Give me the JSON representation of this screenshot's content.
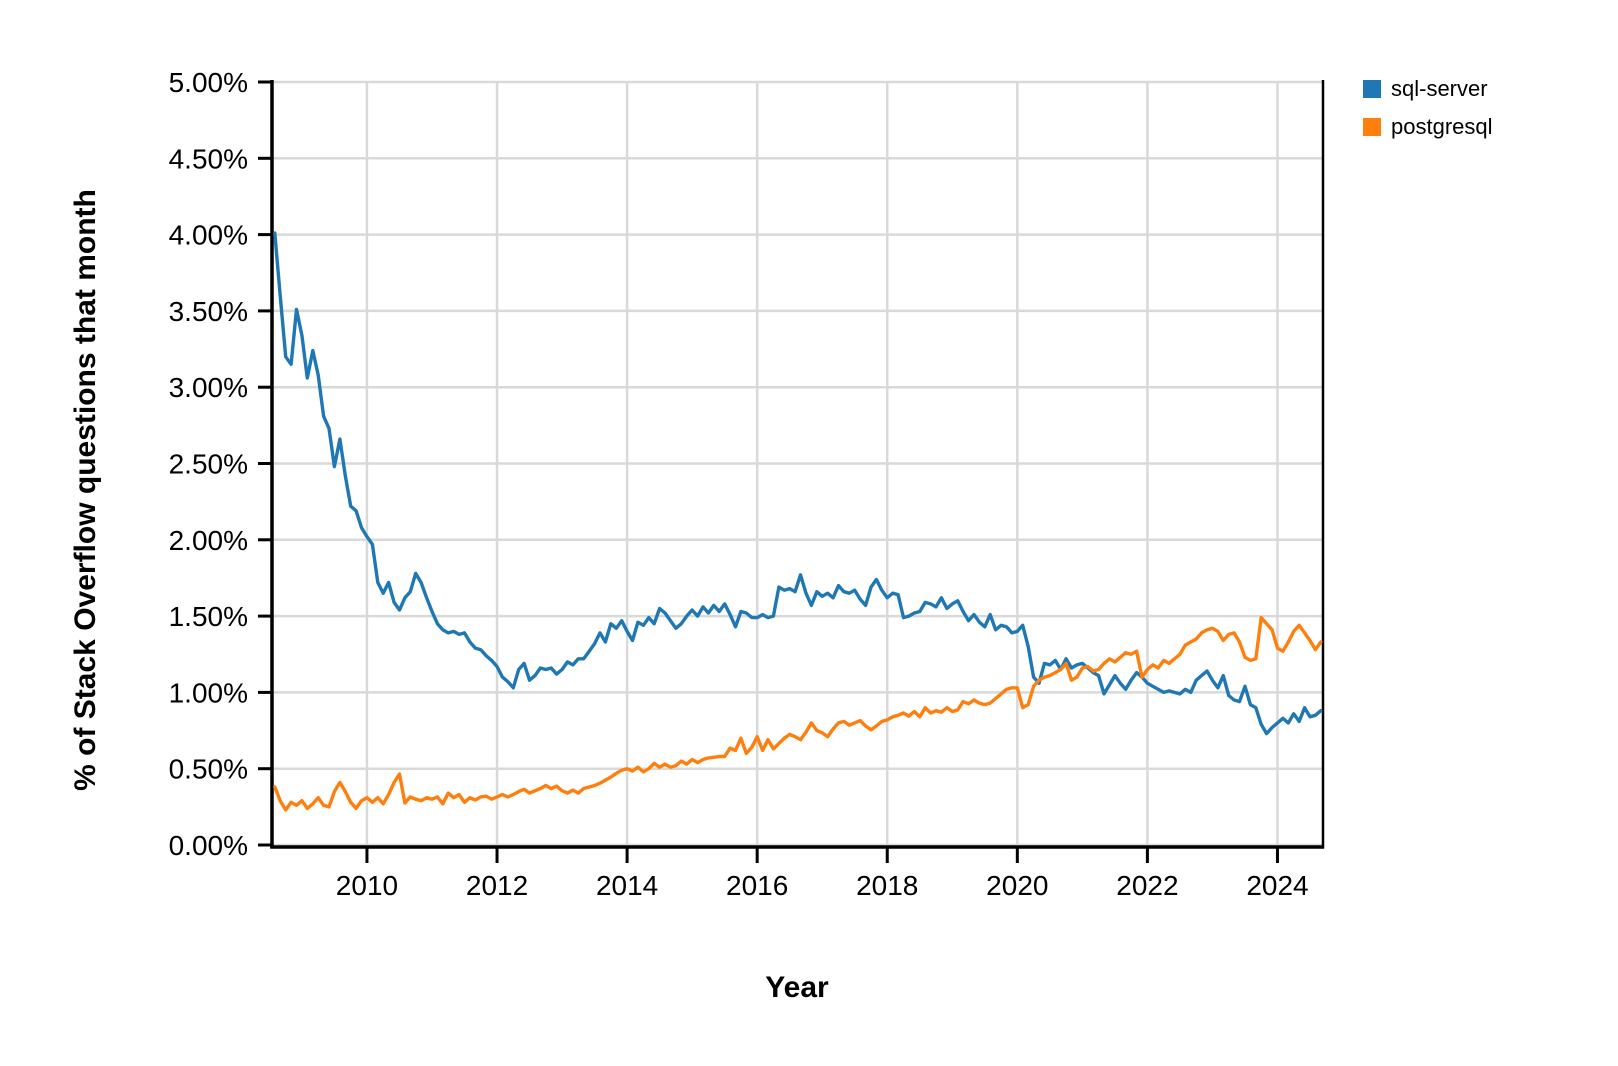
{
  "chart_data": {
    "type": "line",
    "title": "",
    "xlabel": "Year",
    "ylabel": "% of Stack Overflow questions that month",
    "x_start_year": 2008.5833,
    "x_step": "monthly",
    "xlim": [
      2008.54,
      2024.7
    ],
    "ylim": [
      0,
      5
    ],
    "grid": true,
    "legend_position": "top-right",
    "x_ticks": [
      2010,
      2012,
      2014,
      2016,
      2018,
      2020,
      2022,
      2024
    ],
    "x_tick_labels": [
      "2010",
      "2012",
      "2014",
      "2016",
      "2018",
      "2020",
      "2022",
      "2024"
    ],
    "y_ticks": [
      0,
      0.5,
      1.0,
      1.5,
      2.0,
      2.5,
      3.0,
      3.5,
      4.0,
      4.5,
      5.0
    ],
    "y_tick_labels": [
      "0.00%",
      "0.50%",
      "1.00%",
      "1.50%",
      "2.00%",
      "2.50%",
      "3.00%",
      "3.50%",
      "4.00%",
      "4.50%",
      "5.00%"
    ],
    "colors": {
      "grid": "#d9d9d9",
      "axis": "#000000",
      "background": "#ffffff"
    },
    "series": [
      {
        "name": "sql-server",
        "color": "#1f77b4",
        "values": [
          4.01,
          3.6,
          3.2,
          3.15,
          3.51,
          3.34,
          3.06,
          3.24,
          3.08,
          2.81,
          2.73,
          2.48,
          2.66,
          2.42,
          2.22,
          2.19,
          2.08,
          2.02,
          1.97,
          1.72,
          1.65,
          1.72,
          1.59,
          1.54,
          1.62,
          1.66,
          1.78,
          1.72,
          1.62,
          1.53,
          1.45,
          1.41,
          1.39,
          1.4,
          1.38,
          1.39,
          1.33,
          1.29,
          1.28,
          1.24,
          1.21,
          1.17,
          1.1,
          1.07,
          1.03,
          1.15,
          1.19,
          1.08,
          1.11,
          1.16,
          1.15,
          1.16,
          1.12,
          1.15,
          1.2,
          1.18,
          1.22,
          1.22,
          1.27,
          1.32,
          1.39,
          1.33,
          1.45,
          1.42,
          1.47,
          1.4,
          1.34,
          1.46,
          1.44,
          1.49,
          1.45,
          1.55,
          1.52,
          1.47,
          1.42,
          1.45,
          1.5,
          1.54,
          1.5,
          1.56,
          1.52,
          1.57,
          1.53,
          1.58,
          1.51,
          1.43,
          1.53,
          1.52,
          1.49,
          1.49,
          1.51,
          1.49,
          1.5,
          1.69,
          1.67,
          1.68,
          1.66,
          1.77,
          1.65,
          1.57,
          1.66,
          1.63,
          1.65,
          1.62,
          1.7,
          1.66,
          1.65,
          1.67,
          1.61,
          1.57,
          1.69,
          1.74,
          1.67,
          1.62,
          1.65,
          1.64,
          1.49,
          1.5,
          1.52,
          1.53,
          1.59,
          1.58,
          1.56,
          1.62,
          1.55,
          1.58,
          1.6,
          1.53,
          1.47,
          1.51,
          1.46,
          1.43,
          1.51,
          1.41,
          1.44,
          1.43,
          1.39,
          1.4,
          1.44,
          1.3,
          1.1,
          1.06,
          1.19,
          1.18,
          1.21,
          1.15,
          1.22,
          1.16,
          1.18,
          1.19,
          1.16,
          1.13,
          1.11,
          0.99,
          1.05,
          1.11,
          1.06,
          1.02,
          1.08,
          1.13,
          1.1,
          1.06,
          1.04,
          1.02,
          1.0,
          1.01,
          1.0,
          0.99,
          1.02,
          1.0,
          1.08,
          1.11,
          1.14,
          1.08,
          1.03,
          1.11,
          0.98,
          0.95,
          0.94,
          1.04,
          0.92,
          0.9,
          0.79,
          0.73,
          0.77,
          0.8,
          0.83,
          0.8,
          0.86,
          0.81,
          0.9,
          0.84,
          0.85,
          0.88
        ]
      },
      {
        "name": "postgresql",
        "color": "#ff7f0e",
        "values": [
          0.38,
          0.29,
          0.23,
          0.28,
          0.26,
          0.29,
          0.24,
          0.27,
          0.31,
          0.26,
          0.25,
          0.35,
          0.41,
          0.35,
          0.28,
          0.24,
          0.29,
          0.31,
          0.28,
          0.31,
          0.27,
          0.33,
          0.41,
          0.465,
          0.275,
          0.315,
          0.3,
          0.29,
          0.31,
          0.3,
          0.315,
          0.27,
          0.34,
          0.31,
          0.33,
          0.28,
          0.31,
          0.295,
          0.315,
          0.32,
          0.3,
          0.315,
          0.33,
          0.315,
          0.33,
          0.35,
          0.365,
          0.34,
          0.355,
          0.37,
          0.39,
          0.37,
          0.385,
          0.355,
          0.34,
          0.36,
          0.34,
          0.37,
          0.38,
          0.39,
          0.405,
          0.425,
          0.445,
          0.47,
          0.49,
          0.5,
          0.485,
          0.51,
          0.48,
          0.5,
          0.535,
          0.51,
          0.53,
          0.51,
          0.52,
          0.55,
          0.53,
          0.56,
          0.54,
          0.56,
          0.57,
          0.575,
          0.58,
          0.58,
          0.635,
          0.62,
          0.7,
          0.6,
          0.64,
          0.71,
          0.62,
          0.69,
          0.63,
          0.665,
          0.7,
          0.725,
          0.71,
          0.69,
          0.74,
          0.8,
          0.75,
          0.735,
          0.71,
          0.76,
          0.8,
          0.81,
          0.785,
          0.8,
          0.815,
          0.78,
          0.755,
          0.78,
          0.81,
          0.82,
          0.84,
          0.85,
          0.865,
          0.845,
          0.875,
          0.84,
          0.9,
          0.865,
          0.88,
          0.87,
          0.9,
          0.875,
          0.885,
          0.94,
          0.925,
          0.95,
          0.93,
          0.92,
          0.93,
          0.96,
          0.99,
          1.02,
          1.03,
          1.03,
          0.9,
          0.92,
          1.04,
          1.08,
          1.1,
          1.11,
          1.13,
          1.15,
          1.19,
          1.08,
          1.1,
          1.16,
          1.17,
          1.14,
          1.15,
          1.19,
          1.22,
          1.2,
          1.23,
          1.26,
          1.25,
          1.27,
          1.1,
          1.15,
          1.18,
          1.16,
          1.21,
          1.19,
          1.22,
          1.25,
          1.31,
          1.33,
          1.35,
          1.39,
          1.41,
          1.42,
          1.4,
          1.34,
          1.38,
          1.39,
          1.33,
          1.23,
          1.21,
          1.22,
          1.49,
          1.45,
          1.41,
          1.29,
          1.27,
          1.33,
          1.4,
          1.44,
          1.39,
          1.34,
          1.28,
          1.33
        ]
      }
    ]
  }
}
